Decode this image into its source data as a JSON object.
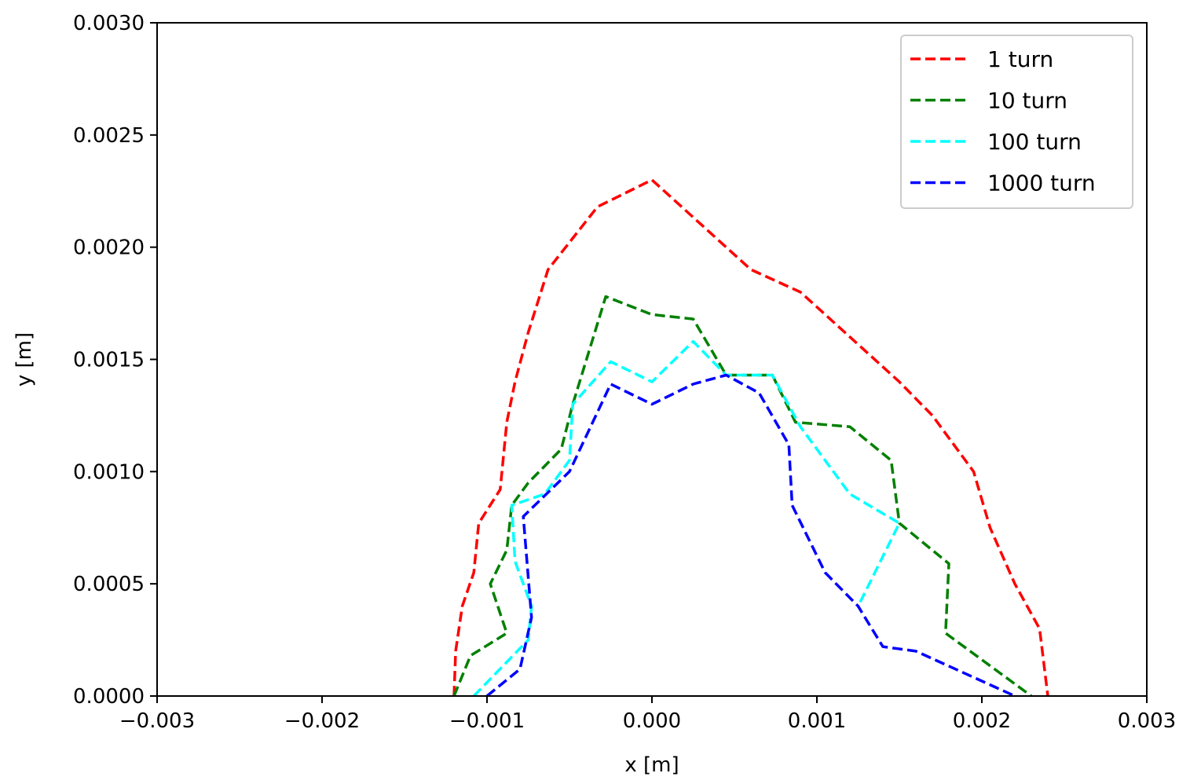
{
  "chart_data": {
    "type": "line",
    "title": "",
    "xlabel": "x [m]",
    "ylabel": "y [m]",
    "xlim": [
      -0.003,
      0.003
    ],
    "ylim": [
      0.0,
      0.003
    ],
    "xticks": [
      -0.003,
      -0.002,
      -0.001,
      0.0,
      0.001,
      0.002,
      0.003
    ],
    "xtick_labels": [
      "−0.003",
      "−0.002",
      "−0.001",
      "0.000",
      "0.001",
      "0.002",
      "0.003"
    ],
    "yticks": [
      0.0,
      0.0005,
      0.001,
      0.0015,
      0.002,
      0.0025,
      0.003
    ],
    "ytick_labels": [
      "0.0000",
      "0.0005",
      "0.0010",
      "0.0015",
      "0.0020",
      "0.0025",
      "0.0030"
    ],
    "grid": false,
    "legend_position": "top-right",
    "series": [
      {
        "name": "1 turn",
        "color": "#ff0000",
        "line_style": "dashed",
        "points": [
          [
            -0.0012,
            0.0
          ],
          [
            -0.00119,
            0.0002
          ],
          [
            -0.00115,
            0.0004
          ],
          [
            -0.00108,
            0.00055
          ],
          [
            -0.00105,
            0.00077
          ],
          [
            -0.00092,
            0.00092
          ],
          [
            -0.00088,
            0.00122
          ],
          [
            -0.00083,
            0.0014
          ],
          [
            -0.00075,
            0.00162
          ],
          [
            -0.00063,
            0.0019
          ],
          [
            -0.00033,
            0.00218
          ],
          [
            0.0,
            0.0023
          ],
          [
            0.0003,
            0.0021
          ],
          [
            0.0006,
            0.0019
          ],
          [
            0.0009,
            0.0018
          ],
          [
            0.0012,
            0.0016
          ],
          [
            0.0015,
            0.0014
          ],
          [
            0.0017,
            0.00125
          ],
          [
            0.00195,
            0.001
          ],
          [
            0.00205,
            0.00075
          ],
          [
            0.0022,
            0.0005
          ],
          [
            0.00235,
            0.0003
          ],
          [
            0.0024,
            0.0
          ]
        ]
      },
      {
        "name": "10 turn",
        "color": "#008000",
        "line_style": "dashed",
        "points": [
          [
            -0.0012,
            0.0
          ],
          [
            -0.0011,
            0.00018
          ],
          [
            -0.00088,
            0.00028
          ],
          [
            -0.00098,
            0.0005
          ],
          [
            -0.00088,
            0.00065
          ],
          [
            -0.00085,
            0.00085
          ],
          [
            -0.00075,
            0.00095
          ],
          [
            -0.00055,
            0.0011
          ],
          [
            -0.00048,
            0.0013
          ],
          [
            -0.00028,
            0.00178
          ],
          [
            0.0,
            0.0017
          ],
          [
            0.00025,
            0.00168
          ],
          [
            0.00045,
            0.00143
          ],
          [
            0.00073,
            0.00143
          ],
          [
            0.00087,
            0.00122
          ],
          [
            0.0012,
            0.0012
          ],
          [
            0.00145,
            0.00105
          ],
          [
            0.0015,
            0.00077
          ],
          [
            0.0018,
            0.00059
          ],
          [
            0.00178,
            0.00028
          ],
          [
            0.0023,
            0.0
          ]
        ]
      },
      {
        "name": "100 turn",
        "color": "#00ffff",
        "line_style": "dashed",
        "points": [
          [
            -0.00108,
            0.0
          ],
          [
            -0.00075,
            0.00025
          ],
          [
            -0.00073,
            0.0004
          ],
          [
            -0.00083,
            0.0006
          ],
          [
            -0.00085,
            0.00085
          ],
          [
            -0.00065,
            0.0009
          ],
          [
            -0.0005,
            0.00105
          ],
          [
            -0.00048,
            0.0013
          ],
          [
            -0.00025,
            0.00149
          ],
          [
            0.0,
            0.0014
          ],
          [
            0.00025,
            0.00158
          ],
          [
            0.00045,
            0.00143
          ],
          [
            0.00073,
            0.00143
          ],
          [
            0.0009,
            0.0012
          ],
          [
            0.0012,
            0.0009
          ],
          [
            0.0015,
            0.00077
          ],
          [
            0.00125,
            0.0004
          ]
        ]
      },
      {
        "name": "1000 turn",
        "color": "#0000ff",
        "line_style": "dashed",
        "points": [
          [
            -0.001,
            0.0
          ],
          [
            -0.0008,
            0.00012
          ],
          [
            -0.00073,
            0.00035
          ],
          [
            -0.00078,
            0.0008
          ],
          [
            -0.0005,
            0.001
          ],
          [
            -0.00025,
            0.00139
          ],
          [
            0.0,
            0.0013
          ],
          [
            0.00025,
            0.00139
          ],
          [
            0.00045,
            0.00143
          ],
          [
            0.00065,
            0.00135
          ],
          [
            0.00083,
            0.00112
          ],
          [
            0.00085,
            0.00085
          ],
          [
            0.00105,
            0.00055
          ],
          [
            0.00125,
            0.0004
          ],
          [
            0.0014,
            0.00022
          ],
          [
            0.0016,
            0.0002
          ],
          [
            0.0022,
            0.0
          ]
        ]
      }
    ]
  }
}
